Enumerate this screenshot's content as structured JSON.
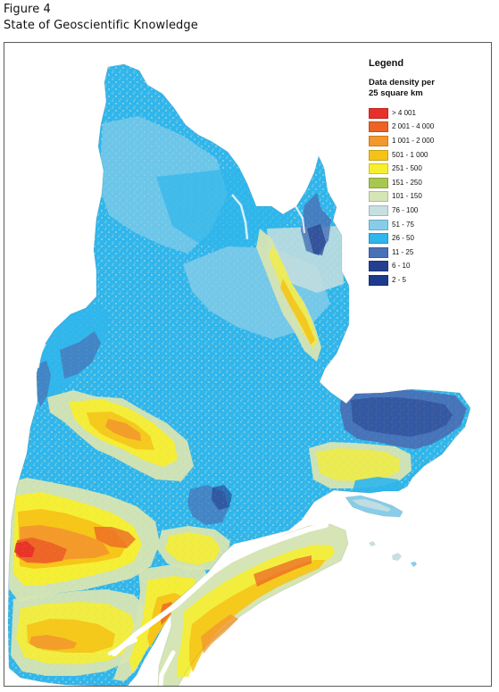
{
  "figure": {
    "number": "Figure 4",
    "title": "State of Geoscientific Knowledge"
  },
  "legend": {
    "title": "Legend",
    "subtitle_lines": [
      "Data density per",
      "25 square km"
    ],
    "items": [
      {
        "label": "> 4 001",
        "color": "#e8302a"
      },
      {
        "label": "2 001 - 4 000",
        "color": "#ec6227"
      },
      {
        "label": "1 001 - 2 000",
        "color": "#f3982c"
      },
      {
        "label": "501 - 1 000",
        "color": "#f5c318"
      },
      {
        "label": "251 - 500",
        "color": "#f7ef2e"
      },
      {
        "label": "151 - 250",
        "color": "#a8c74f"
      },
      {
        "label": "101 - 150",
        "color": "#d6e5b5"
      },
      {
        "label": "76 - 100",
        "color": "#c6dfe1"
      },
      {
        "label": "51 - 75",
        "color": "#87cdea"
      },
      {
        "label": "26 - 50",
        "color": "#2eb6ed"
      },
      {
        "label": "11 - 25",
        "color": "#4871b8"
      },
      {
        "label": "6 - 10",
        "color": "#243f8f"
      },
      {
        "label": "2 - 5",
        "color": "#1d3a8f"
      }
    ]
  },
  "map": {
    "region_colors": {
      "base_blue": "#2eb6ed",
      "light_blue": "#87cdea",
      "pale_blue": "#c6dfe1",
      "pale_green": "#d6e5b5",
      "green": "#a8c74f",
      "yellow": "#f7ef2e",
      "gold": "#f5c318",
      "orange": "#f3982c",
      "dark_orange": "#ec6227",
      "red": "#e8302a",
      "mid_blue": "#4871b8",
      "dark_blue": "#243f8f",
      "water": "#ffffff"
    }
  }
}
